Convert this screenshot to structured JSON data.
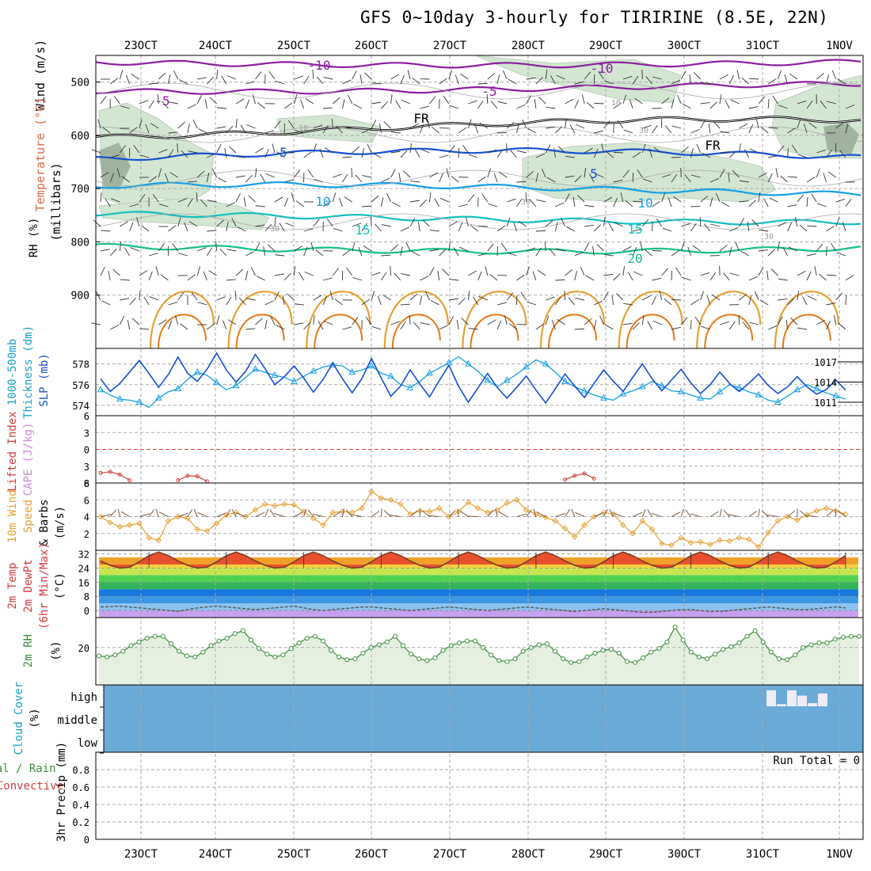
{
  "title": "GFS 0~10day 3-hourly for TIRIRINE (8.5E, 22N)",
  "colors": {
    "purple": "#8c1ea0",
    "black": "#000000",
    "blue": "#1450d2",
    "lightblue": "#14a0e6",
    "teal": "#14bebe",
    "green": "#14be8c",
    "orange": "#e6a032",
    "darkorange": "#e67814",
    "rhshade": "#d2e6d2",
    "rhdark": "#a0b4a0",
    "cloud": "#6aaad6",
    "grid": "#aaaaaa"
  },
  "chart_data": {
    "type": "meteogram",
    "dates": [
      "23OCT",
      "24OCT",
      "25OCT",
      "26OCT",
      "27OCT",
      "28OCT",
      "29OCT",
      "30OCT",
      "31OCT",
      "1NOV"
    ],
    "run_total": "Run Total = 0",
    "panels": [
      {
        "id": "upper_air",
        "type": "contour",
        "ylabels": [
          "Wind (m/s)",
          "Temperature (°C)",
          "RH (%)",
          "(millibars)"
        ],
        "ylim": [
          1000,
          450
        ],
        "yticks": [
          500,
          600,
          700,
          800,
          900
        ],
        "isotherms": [
          {
            "label": "-10",
            "levels": [
              455,
              470
            ],
            "color_key": "purple"
          },
          {
            "label": "-5",
            "levels": [
              500,
              520
            ],
            "color_key": "purple"
          },
          {
            "label": "FR",
            "levels": [
              565,
              610
            ],
            "color_key": "black"
          },
          {
            "label": "5",
            "levels": [
              625,
              660
            ],
            "color_key": "blue"
          },
          {
            "label": "10",
            "levels": [
              690,
              715
            ],
            "color_key": "lightblue"
          },
          {
            "label": "15",
            "levels": [
              745,
              765
            ],
            "color_key": "teal"
          },
          {
            "label": "20",
            "levels": [
              800,
              820
            ],
            "color_key": "green"
          }
        ],
        "contour_labels": [
          "-10",
          "-10",
          "-5",
          "-5",
          "FR",
          "FR",
          "5",
          "5",
          "10",
          "10",
          "15",
          "15",
          "20",
          "10",
          "10",
          "30",
          "30",
          "30",
          "30"
        ]
      },
      {
        "id": "slp_thickness",
        "type": "line",
        "ylabels": [
          "1000-500mb",
          "Thickness (dm)",
          "SLP (mb)"
        ],
        "yticks_left": [
          574,
          576,
          578
        ],
        "yticks_right": [
          1011,
          1014,
          1017
        ],
        "series": [
          {
            "name": "SLP (mb)",
            "color_key": "blue",
            "values": [
              1014.5,
              1012.6,
              1013.8,
              1015.5,
              1017.2,
              1015.3,
              1013.2,
              1015.1,
              1017.7,
              1015.3,
              1014.1,
              1015.9,
              1018.3,
              1015.8,
              1014.0,
              1015.6,
              1018.1,
              1016.0,
              1013.6,
              1014.8,
              1016.4,
              1014.6,
              1012.5,
              1014.4,
              1016.8,
              1014.5,
              1012.4,
              1014.5,
              1017.5,
              1014.6,
              1011.9,
              1013.4,
              1015.8,
              1013.7,
              1011.8,
              1014.2,
              1016.5,
              1013.4,
              1011.0,
              1013.1,
              1015.3,
              1013.2,
              1011.6,
              1013.2,
              1014.9,
              1012.8,
              1010.9,
              1013.0,
              1015.2,
              1013.4,
              1011.7,
              1013.8,
              1015.8,
              1014.1,
              1012.6,
              1014.7,
              1016.7,
              1014.5,
              1012.7,
              1014.3,
              1015.9,
              1013.9,
              1012.3,
              1013.6,
              1015.5,
              1013.8,
              1012.6,
              1013.8,
              1015.2,
              1013.5,
              1012.3,
              1013.3,
              1014.8,
              1013.3,
              1012.2,
              1012.9,
              1014.3,
              1012.8
            ]
          },
          {
            "name": "1000-500mb Thickness (dm)",
            "color_key": "lightblue",
            "values": [
              575.5,
              575.0,
              574.6,
              574.5,
              574.3,
              573.8,
              574.7,
              575.3,
              575.6,
              576.5,
              577.2,
              576.9,
              576.2,
              575.5,
              575.9,
              576.7,
              577.5,
              577.2,
              576.9,
              576.7,
              576.3,
              576.8,
              577.3,
              577.7,
              577.9,
              577.8,
              577.2,
              577.4,
              577.8,
              577.1,
              576.8,
              576.0,
              575.7,
              576.3,
              577.1,
              577.6,
              578.1,
              578.7,
              578.0,
              577.3,
              576.4,
              575.8,
              576.4,
              577.0,
              577.7,
              578.4,
              578.0,
              577.2,
              576.3,
              575.8,
              575.4,
              575.0,
              574.7,
              574.5,
              575.1,
              575.4,
              575.8,
              576.3,
              575.9,
              575.4,
              575.3,
              575.0,
              574.7,
              574.6,
              575.3,
              576.0,
              575.7,
              575.3,
              575.0,
              574.5,
              574.3,
              574.9,
              575.5,
              576.0,
              575.6,
              575.2,
              574.9,
              574.6
            ]
          }
        ]
      },
      {
        "id": "cape_li",
        "type": "line",
        "ylabels": [
          "Lifted Index",
          "CAPE (J/kg)"
        ],
        "yticks": [
          -6,
          -3,
          0,
          3,
          6
        ],
        "ylim": [
          6,
          -6
        ],
        "series": [
          {
            "name": "Lifted Index",
            "color_key": "red",
            "points": [
              {
                "i": 0,
                "v": 4.2
              },
              {
                "i": 1,
                "v": 4.0
              },
              {
                "i": 2,
                "v": 4.5
              },
              {
                "i": 3,
                "v": 5.5
              },
              {
                "i": 8,
                "v": 5.5
              },
              {
                "i": 9,
                "v": 4.7
              },
              {
                "i": 10,
                "v": 4.8
              },
              {
                "i": 11,
                "v": 5.7
              },
              {
                "i": 48,
                "v": 5.4
              },
              {
                "i": 49,
                "v": 4.7
              },
              {
                "i": 50,
                "v": 4.3
              },
              {
                "i": 51,
                "v": 5.2
              }
            ]
          }
        ]
      },
      {
        "id": "wind10m",
        "type": "line",
        "ylabels": [
          "10m Wind",
          "Speed",
          "& Barbs",
          "(m/s)"
        ],
        "yticks": [
          2,
          4,
          6,
          8
        ],
        "ylim": [
          0,
          8
        ],
        "series": [
          {
            "name": "10m Wind Speed (m/s)",
            "color_key": "orange",
            "values": [
              4.0,
              3.3,
              2.8,
              3.0,
              3.2,
              1.5,
              1.2,
              3.5,
              4.0,
              3.8,
              2.5,
              2.3,
              3.2,
              4.2,
              4.5,
              4.0,
              4.8,
              5.5,
              5.3,
              5.5,
              5.4,
              4.6,
              3.8,
              3.0,
              4.5,
              4.6,
              4.5,
              5.0,
              7.0,
              6.2,
              6.0,
              5.5,
              4.3,
              4.7,
              4.6,
              5.0,
              4.0,
              4.6,
              5.7,
              5.0,
              4.5,
              4.8,
              5.6,
              6.0,
              4.8,
              4.3,
              3.9,
              3.5,
              2.6,
              1.6,
              3.0,
              4.0,
              4.5,
              4.3,
              3.0,
              2.0,
              3.5,
              2.5,
              0.8,
              0.6,
              1.5,
              0.9,
              1.0,
              0.7,
              1.2,
              1.1,
              1.5,
              1.3,
              0.4,
              2.1,
              3.5,
              4.0,
              3.6,
              4.2,
              4.7,
              5.0,
              4.7,
              4.3
            ]
          }
        ]
      },
      {
        "id": "temperature",
        "type": "area",
        "ylabels": [
          "2m Temp",
          "2m DewPt",
          "(6hr Min/Max)",
          "(°C)"
        ],
        "yticks": [
          0,
          8,
          16,
          24,
          32
        ],
        "ylim": [
          -4,
          34
        ],
        "series": [
          {
            "name": "2m Temp (°C)",
            "color_key": "darkorange",
            "values": [
              28.0,
              25.5,
              24.0,
              24.5,
              27.5,
              31.0,
              33.0,
              31.0,
              28.0,
              25.5,
              24.0,
              24.5,
              27.5,
              31.0,
              33.0,
              31.0,
              28.0,
              25.5,
              24.0,
              24.5,
              27.5,
              31.0,
              33.0,
              31.0,
              28.0,
              25.5,
              24.0,
              24.5,
              27.5,
              31.0,
              33.0,
              31.0,
              28.0,
              25.5,
              24.0,
              24.5,
              27.5,
              31.0,
              33.0,
              31.0,
              28.0,
              25.5,
              24.0,
              24.5,
              27.5,
              31.0,
              33.0,
              31.0,
              28.0,
              25.5,
              24.0,
              24.5,
              27.5,
              31.0,
              33.0,
              31.0,
              28.0,
              25.5,
              24.0,
              24.5,
              27.5,
              31.0,
              33.0,
              31.0,
              28.0,
              25.5,
              24.0,
              24.5,
              27.5,
              31.0,
              33.0,
              31.0,
              28.0,
              25.5,
              24.0,
              24.5,
              27.5,
              31.0
            ]
          },
          {
            "name": "2m DewPt (°C)",
            "color_key": "gray",
            "values": [
              2.0,
              2.2,
              2.5,
              2.0,
              1.5,
              1.0,
              0.5,
              0.0,
              -0.5,
              0.5,
              1.5,
              2.0,
              2.5,
              2.0,
              1.5,
              1.0,
              0.5,
              1.0,
              1.5,
              2.0,
              2.5,
              1.5,
              0.5,
              0.0,
              0.5,
              1.0,
              1.5,
              2.0,
              2.0,
              1.5,
              1.0,
              0.5,
              0.0,
              0.5,
              1.0,
              1.5,
              2.0,
              1.5,
              1.0,
              0.5,
              0.0,
              0.5,
              1.0,
              1.5,
              2.0,
              1.5,
              1.0,
              0.5,
              0.0,
              -0.5,
              0.0,
              0.5,
              1.0,
              0.5,
              0.0,
              -0.5,
              -1.0,
              -1.0,
              -0.5,
              0.0,
              0.5,
              0.5,
              0.0,
              -0.5,
              -0.5,
              0.0,
              0.5,
              1.0,
              1.5,
              2.0,
              1.5,
              1.0,
              0.5,
              0.5,
              1.0,
              1.5,
              2.0,
              1.5
            ]
          }
        ]
      },
      {
        "id": "rh2m",
        "type": "area",
        "ylabels": [
          "2m RH",
          "(%)"
        ],
        "yticks": [
          20
        ],
        "ylim": [
          0,
          36
        ],
        "series": [
          {
            "name": "2m RH (%)",
            "color_key": "green",
            "values": [
              15.5,
              15.0,
              16.0,
              18.0,
              21.0,
              23.0,
              25.0,
              26.0,
              26.0,
              22.0,
              18.0,
              15.5,
              15.0,
              17.5,
              21.0,
              23.5,
              25.0,
              27.5,
              29.0,
              24.0,
              19.5,
              16.5,
              15.0,
              16.0,
              19.5,
              22.5,
              25.0,
              26.0,
              23.5,
              18.5,
              15.0,
              13.5,
              14.0,
              17.0,
              20.0,
              21.5,
              23.0,
              26.0,
              21.0,
              16.5,
              14.0,
              13.0,
              14.5,
              18.5,
              21.0,
              22.5,
              23.5,
              23.5,
              20.0,
              16.0,
              13.0,
              12.5,
              14.0,
              18.0,
              20.0,
              21.5,
              22.0,
              18.0,
              14.0,
              12.0,
              12.5,
              15.0,
              17.0,
              18.5,
              19.0,
              17.0,
              12.5,
              12.0,
              14.5,
              17.5,
              19.5,
              23.0,
              31.0,
              24.0,
              17.5,
              15.0,
              14.0,
              16.5,
              19.0,
              20.5,
              22.5,
              26.0,
              29.0,
              23.0,
              17.5,
              14.0,
              13.5,
              16.0,
              20.0,
              21.5,
              22.5,
              22.5,
              24.5,
              25.5,
              26.0,
              26.0
            ]
          }
        ]
      },
      {
        "id": "cloud",
        "type": "area",
        "ylabels": [
          "Cloud Cover",
          "(%)"
        ],
        "yticks": [
          "high",
          "middle",
          "low"
        ],
        "series": [
          {
            "name": "high cloud gaps",
            "color_key": "white",
            "values": [
              75,
              10,
              75,
              50,
              15,
              60
            ]
          }
        ]
      },
      {
        "id": "precip",
        "type": "bar",
        "ylabels": [
          "Total / Rain",
          "Convective",
          "3hr Precip (mm)"
        ],
        "yticks": [
          0,
          0.2,
          0.4,
          0.6,
          0.8
        ],
        "ylim": [
          0,
          1.0
        ],
        "series": []
      }
    ]
  }
}
